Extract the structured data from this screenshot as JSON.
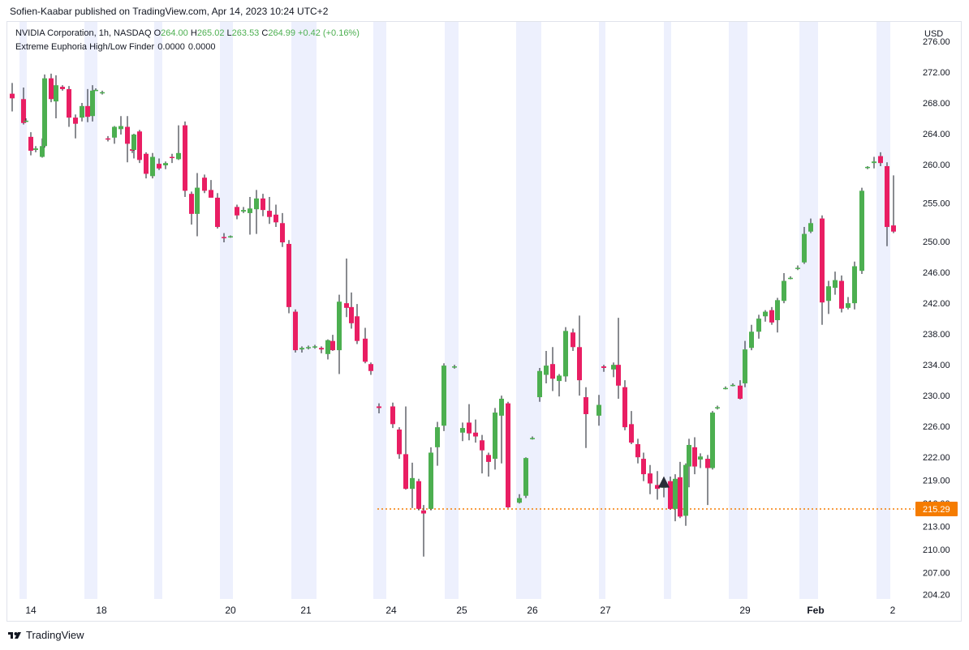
{
  "header": {
    "published_by": "Sofien-Kaabar published on TradingView.com, Apr 14, 2023 10:24 UTC+2"
  },
  "legend": {
    "symbol": "NVIDIA Corporation, 1h, NASDAQ",
    "open_label": "O",
    "open": "264.00",
    "high_label": "H",
    "high": "265.02",
    "low_label": "L",
    "low": "263.53",
    "close_label": "C",
    "close": "264.99",
    "change": "+0.42 (+0.16%)",
    "indicator_name": "Extreme Euphoria High/Low Finder",
    "indicator_value_1": "0.0000",
    "indicator_value_2": "0.0000"
  },
  "footer": {
    "brand": "TradingView",
    "logo_icon": "tradingview-logo-icon"
  },
  "colors": {
    "up": "#4caf50",
    "down": "#e91e63",
    "session_band": "#edf0fd",
    "price_line": "#f57c00",
    "signal": "#2a2e39",
    "axis_text": "#131722"
  },
  "chart_data": {
    "type": "candlestick",
    "currency": "USD",
    "ylim": [
      203.5,
      278.0
    ],
    "y_ticks": [
      "276.00",
      "272.00",
      "268.00",
      "264.00",
      "260.00",
      "255.00",
      "250.00",
      "246.00",
      "242.00",
      "238.00",
      "234.00",
      "230.00",
      "226.00",
      "222.00",
      "219.00",
      "216.00",
      "213.00",
      "210.00",
      "207.00",
      "204.20"
    ],
    "x_ticks": [
      "14",
      "18",
      "20",
      "21",
      "24",
      "25",
      "26",
      "27",
      "29",
      "Feb",
      "2"
    ],
    "last_price": "215.29",
    "last_price_value": 215.29,
    "signals": [
      {
        "type": "bullish-triangle",
        "candle_index": 100,
        "value": 218.8
      }
    ],
    "candles": [
      {
        "o": 269.2,
        "h": 270.6,
        "l": 266.9,
        "c": 268.6
      },
      {
        "o": 268.5,
        "h": 270.0,
        "l": 265.2,
        "c": 265.4
      },
      {
        "o": 265.7,
        "h": 266.0,
        "l": 265.5,
        "c": 265.7
      },
      {
        "o": 263.6,
        "h": 264.2,
        "l": 261.2,
        "c": 261.8
      },
      {
        "o": 261.9,
        "h": 262.4,
        "l": 261.6,
        "c": 262.1
      },
      {
        "o": 261.0,
        "h": 263.4,
        "l": 260.9,
        "c": 262.4
      },
      {
        "o": 262.4,
        "h": 271.7,
        "l": 262.2,
        "c": 271.2
      },
      {
        "o": 271.2,
        "h": 271.8,
        "l": 268.1,
        "c": 268.5
      },
      {
        "o": 268.2,
        "h": 271.6,
        "l": 266.0,
        "c": 270.3
      },
      {
        "o": 270.1,
        "h": 270.3,
        "l": 269.6,
        "c": 269.8
      },
      {
        "o": 269.8,
        "h": 270.2,
        "l": 264.9,
        "c": 266.1
      },
      {
        "o": 266.1,
        "h": 266.5,
        "l": 263.4,
        "c": 265.3
      },
      {
        "o": 266.1,
        "h": 268.0,
        "l": 265.6,
        "c": 267.6
      },
      {
        "o": 267.6,
        "h": 269.8,
        "l": 265.5,
        "c": 266.2
      },
      {
        "o": 266.3,
        "h": 270.3,
        "l": 265.6,
        "c": 269.6
      },
      {
        "o": 269.7,
        "h": 269.9,
        "l": 269.6,
        "c": 269.7
      },
      {
        "o": 269.3,
        "h": 269.6,
        "l": 269.1,
        "c": 269.4
      },
      {
        "o": 263.4,
        "h": 263.7,
        "l": 263.0,
        "c": 263.3
      },
      {
        "o": 263.5,
        "h": 265.0,
        "l": 262.7,
        "c": 264.9
      },
      {
        "o": 264.6,
        "h": 266.3,
        "l": 263.9,
        "c": 265.0
      },
      {
        "o": 264.9,
        "h": 266.3,
        "l": 260.3,
        "c": 262.7
      },
      {
        "o": 262.0,
        "h": 262.4,
        "l": 261.5,
        "c": 261.8
      },
      {
        "o": 261.9,
        "h": 264.0,
        "l": 260.8,
        "c": 263.9
      },
      {
        "o": 264.3,
        "h": 264.5,
        "l": 260.2,
        "c": 260.6
      },
      {
        "o": 261.4,
        "h": 261.6,
        "l": 258.2,
        "c": 258.8
      },
      {
        "o": 258.5,
        "h": 261.5,
        "l": 258.2,
        "c": 261.0
      },
      {
        "o": 260.1,
        "h": 260.8,
        "l": 259.3,
        "c": 259.5
      },
      {
        "o": 259.9,
        "h": 260.4,
        "l": 259.4,
        "c": 260.2
      },
      {
        "o": 261.0,
        "h": 261.4,
        "l": 260.2,
        "c": 260.9
      },
      {
        "o": 260.7,
        "h": 265.1,
        "l": 260.6,
        "c": 261.5
      },
      {
        "o": 265.1,
        "h": 265.6,
        "l": 255.8,
        "c": 256.6
      },
      {
        "o": 256.2,
        "h": 256.5,
        "l": 252.2,
        "c": 253.6
      },
      {
        "o": 253.6,
        "h": 258.9,
        "l": 250.7,
        "c": 257.0
      },
      {
        "o": 258.3,
        "h": 258.7,
        "l": 256.3,
        "c": 256.6
      },
      {
        "o": 256.7,
        "h": 258.0,
        "l": 255.7,
        "c": 255.7
      },
      {
        "o": 255.7,
        "h": 256.3,
        "l": 251.7,
        "c": 251.9
      },
      {
        "o": 250.6,
        "h": 251.1,
        "l": 249.9,
        "c": 250.5
      },
      {
        "o": 250.6,
        "h": 250.8,
        "l": 250.5,
        "c": 250.7
      },
      {
        "o": 254.5,
        "h": 254.8,
        "l": 252.9,
        "c": 253.4
      },
      {
        "o": 253.9,
        "h": 254.5,
        "l": 253.7,
        "c": 254.1
      },
      {
        "o": 253.7,
        "h": 255.8,
        "l": 250.9,
        "c": 254.3
      },
      {
        "o": 254.2,
        "h": 256.7,
        "l": 251.0,
        "c": 255.6
      },
      {
        "o": 255.6,
        "h": 256.2,
        "l": 253.3,
        "c": 254.1
      },
      {
        "o": 254.0,
        "h": 255.8,
        "l": 252.3,
        "c": 253.2
      },
      {
        "o": 253.5,
        "h": 254.8,
        "l": 251.9,
        "c": 252.5
      },
      {
        "o": 252.4,
        "h": 253.7,
        "l": 249.3,
        "c": 249.9
      },
      {
        "o": 249.7,
        "h": 250.2,
        "l": 240.7,
        "c": 241.5
      },
      {
        "o": 240.9,
        "h": 241.2,
        "l": 235.6,
        "c": 235.9
      },
      {
        "o": 236.0,
        "h": 236.4,
        "l": 235.6,
        "c": 236.2
      },
      {
        "o": 236.2,
        "h": 236.5,
        "l": 236.0,
        "c": 236.3
      },
      {
        "o": 236.3,
        "h": 236.6,
        "l": 236.1,
        "c": 236.4
      },
      {
        "o": 236.2,
        "h": 236.4,
        "l": 235.5,
        "c": 236.0
      },
      {
        "o": 235.4,
        "h": 237.3,
        "l": 234.7,
        "c": 237.2
      },
      {
        "o": 237.1,
        "h": 237.9,
        "l": 235.8,
        "c": 235.9
      },
      {
        "o": 235.9,
        "h": 243.1,
        "l": 232.8,
        "c": 242.2
      },
      {
        "o": 242.0,
        "h": 247.8,
        "l": 240.2,
        "c": 241.4
      },
      {
        "o": 241.5,
        "h": 243.4,
        "l": 238.7,
        "c": 239.4
      },
      {
        "o": 240.3,
        "h": 241.9,
        "l": 236.7,
        "c": 237.1
      },
      {
        "o": 237.4,
        "h": 238.8,
        "l": 234.2,
        "c": 234.4
      },
      {
        "o": 234.1,
        "h": 234.3,
        "l": 232.7,
        "c": 233.2
      },
      {
        "o": 228.6,
        "h": 229.0,
        "l": 227.7,
        "c": 228.4
      },
      {
        "o": 228.6,
        "h": 229.1,
        "l": 225.8,
        "c": 226.3
      },
      {
        "o": 225.6,
        "h": 225.9,
        "l": 221.8,
        "c": 222.4
      },
      {
        "o": 222.4,
        "h": 228.6,
        "l": 217.8,
        "c": 217.9
      },
      {
        "o": 217.9,
        "h": 221.3,
        "l": 215.4,
        "c": 219.3
      },
      {
        "o": 218.9,
        "h": 219.2,
        "l": 215.1,
        "c": 215.3
      },
      {
        "o": 215.1,
        "h": 215.8,
        "l": 209.1,
        "c": 214.7
      },
      {
        "o": 215.3,
        "h": 223.3,
        "l": 215.1,
        "c": 222.6
      },
      {
        "o": 223.3,
        "h": 226.6,
        "l": 220.9,
        "c": 225.9
      },
      {
        "o": 226.1,
        "h": 234.2,
        "l": 225.4,
        "c": 233.9
      },
      {
        "o": 233.7,
        "h": 234.0,
        "l": 233.5,
        "c": 233.8
      },
      {
        "o": 225.2,
        "h": 226.5,
        "l": 224.1,
        "c": 225.8
      },
      {
        "o": 226.5,
        "h": 228.9,
        "l": 224.2,
        "c": 225.1
      },
      {
        "o": 225.2,
        "h": 226.9,
        "l": 223.9,
        "c": 224.7
      },
      {
        "o": 224.2,
        "h": 224.9,
        "l": 219.9,
        "c": 222.9
      },
      {
        "o": 222.3,
        "h": 222.6,
        "l": 219.5,
        "c": 221.4
      },
      {
        "o": 221.8,
        "h": 228.4,
        "l": 220.4,
        "c": 227.8
      },
      {
        "o": 227.4,
        "h": 230.0,
        "l": 221.2,
        "c": 229.6
      },
      {
        "o": 229.0,
        "h": 229.2,
        "l": 215.4,
        "c": 215.5
      },
      {
        "o": 216.1,
        "h": 217.2,
        "l": 216.0,
        "c": 216.7
      },
      {
        "o": 217.0,
        "h": 222.0,
        "l": 216.7,
        "c": 221.9
      },
      {
        "o": 224.5,
        "h": 224.7,
        "l": 224.3,
        "c": 224.5
      },
      {
        "o": 229.8,
        "h": 233.6,
        "l": 229.2,
        "c": 233.2
      },
      {
        "o": 232.7,
        "h": 235.8,
        "l": 231.6,
        "c": 233.9
      },
      {
        "o": 234.1,
        "h": 236.3,
        "l": 230.6,
        "c": 232.2
      },
      {
        "o": 231.9,
        "h": 232.8,
        "l": 229.9,
        "c": 232.6
      },
      {
        "o": 232.5,
        "h": 238.9,
        "l": 231.8,
        "c": 238.4
      },
      {
        "o": 238.2,
        "h": 238.7,
        "l": 235.8,
        "c": 236.3
      },
      {
        "o": 236.3,
        "h": 240.4,
        "l": 230.0,
        "c": 232.0
      },
      {
        "o": 229.8,
        "h": 231.1,
        "l": 223.2,
        "c": 227.6
      },
      {
        "o": 227.4,
        "h": 230.1,
        "l": 226.1,
        "c": 228.8
      },
      {
        "o": 233.8,
        "h": 234.0,
        "l": 233.1,
        "c": 233.6
      },
      {
        "o": 233.4,
        "h": 234.3,
        "l": 232.4,
        "c": 234.0
      },
      {
        "o": 234.0,
        "h": 240.1,
        "l": 229.6,
        "c": 231.3
      },
      {
        "o": 231.1,
        "h": 232.0,
        "l": 225.5,
        "c": 225.9
      },
      {
        "o": 226.3,
        "h": 228.0,
        "l": 223.7,
        "c": 223.9
      },
      {
        "o": 223.7,
        "h": 224.4,
        "l": 221.2,
        "c": 222.0
      },
      {
        "o": 221.8,
        "h": 222.6,
        "l": 218.9,
        "c": 219.8
      },
      {
        "o": 219.9,
        "h": 221.0,
        "l": 217.2,
        "c": 218.6
      },
      {
        "o": 218.4,
        "h": 220.2,
        "l": 216.5,
        "c": 217.9
      },
      {
        "o": 218.1,
        "h": 219.0,
        "l": 216.8,
        "c": 218.2
      },
      {
        "o": 218.9,
        "h": 219.5,
        "l": 215.2,
        "c": 215.3
      },
      {
        "o": 215.3,
        "h": 219.8,
        "l": 213.7,
        "c": 219.2
      },
      {
        "o": 219.4,
        "h": 221.4,
        "l": 214.1,
        "c": 214.3
      },
      {
        "o": 214.4,
        "h": 221.2,
        "l": 213.1,
        "c": 221.0
      },
      {
        "o": 220.8,
        "h": 224.4,
        "l": 218.1,
        "c": 223.6
      },
      {
        "o": 223.3,
        "h": 224.6,
        "l": 219.8,
        "c": 220.8
      },
      {
        "o": 221.7,
        "h": 222.5,
        "l": 220.6,
        "c": 222.1
      },
      {
        "o": 221.8,
        "h": 222.3,
        "l": 215.8,
        "c": 220.6
      },
      {
        "o": 220.6,
        "h": 228.0,
        "l": 220.4,
        "c": 227.8
      },
      {
        "o": 228.4,
        "h": 228.7,
        "l": 228.2,
        "c": 228.5
      },
      {
        "o": 231.0,
        "h": 231.2,
        "l": 230.8,
        "c": 231.0
      },
      {
        "o": 231.4,
        "h": 231.6,
        "l": 231.2,
        "c": 231.4
      },
      {
        "o": 231.3,
        "h": 232.0,
        "l": 229.5,
        "c": 229.6
      },
      {
        "o": 231.6,
        "h": 237.1,
        "l": 231.1,
        "c": 236.0
      },
      {
        "o": 236.2,
        "h": 239.2,
        "l": 235.9,
        "c": 238.3
      },
      {
        "o": 238.3,
        "h": 240.5,
        "l": 237.4,
        "c": 240.0
      },
      {
        "o": 240.3,
        "h": 241.1,
        "l": 239.6,
        "c": 240.9
      },
      {
        "o": 241.1,
        "h": 241.5,
        "l": 239.2,
        "c": 239.5
      },
      {
        "o": 239.8,
        "h": 242.7,
        "l": 238.2,
        "c": 242.4
      },
      {
        "o": 242.3,
        "h": 245.9,
        "l": 242.0,
        "c": 244.9
      },
      {
        "o": 245.3,
        "h": 245.5,
        "l": 245.1,
        "c": 245.3
      },
      {
        "o": 246.5,
        "h": 246.9,
        "l": 246.3,
        "c": 246.6
      },
      {
        "o": 247.3,
        "h": 251.9,
        "l": 247.1,
        "c": 251.0
      },
      {
        "o": 251.3,
        "h": 253.0,
        "l": 251.1,
        "c": 252.4
      },
      {
        "o": 253.0,
        "h": 253.4,
        "l": 239.2,
        "c": 242.1
      },
      {
        "o": 242.3,
        "h": 244.9,
        "l": 240.6,
        "c": 244.2
      },
      {
        "o": 244.0,
        "h": 246.1,
        "l": 243.1,
        "c": 245.0
      },
      {
        "o": 244.9,
        "h": 245.6,
        "l": 240.8,
        "c": 241.3
      },
      {
        "o": 241.4,
        "h": 242.8,
        "l": 241.2,
        "c": 242.0
      },
      {
        "o": 242.0,
        "h": 247.4,
        "l": 241.2,
        "c": 246.8
      },
      {
        "o": 246.2,
        "h": 257.0,
        "l": 245.8,
        "c": 256.6
      },
      {
        "o": 259.6,
        "h": 259.8,
        "l": 259.4,
        "c": 259.7
      },
      {
        "o": 260.2,
        "h": 261.0,
        "l": 259.5,
        "c": 260.4
      },
      {
        "o": 261.1,
        "h": 261.6,
        "l": 259.8,
        "c": 260.2
      },
      {
        "o": 259.8,
        "h": 260.3,
        "l": 249.4,
        "c": 251.9
      },
      {
        "o": 252.1,
        "h": 258.6,
        "l": 251.1,
        "c": 251.3
      }
    ],
    "candle_x": [
      15,
      29,
      32,
      38,
      44,
      52,
      55,
      63,
      69,
      77,
      85,
      93,
      101,
      108,
      114,
      118,
      126,
      133,
      141,
      149,
      157,
      163,
      165,
      172,
      180,
      188,
      196,
      204,
      212,
      220,
      228,
      236,
      243,
      252,
      260,
      268,
      276,
      284,
      292,
      300,
      308,
      316,
      324,
      332,
      340,
      348,
      356,
      364,
      372,
      380,
      388,
      396,
      404,
      410,
      418,
      427,
      433,
      440,
      450,
      457,
      467,
      484,
      492,
      500,
      508,
      516,
      522,
      531,
      539,
      547,
      560,
      570,
      578,
      586,
      594,
      602,
      610,
      618,
      626,
      640,
      648,
      656,
      665,
      673,
      681,
      689,
      697,
      706,
      714,
      722,
      738,
      744,
      756,
      762,
      770,
      778,
      786,
      793,
      801,
      810,
      818,
      826,
      832,
      838,
      845,
      849,
      856,
      863,
      872,
      878,
      884,
      894,
      903,
      912,
      918,
      926,
      935,
      943,
      951,
      958,
      966,
      974,
      983,
      991,
      999,
      1013,
      1021,
      1029,
      1037,
      1045,
      1053,
      1062,
      1069,
      1077,
      1085,
      1093,
      1101,
      1109,
      1117,
      1125
    ],
    "session_bands": [
      [
        24,
        33
      ],
      [
        104,
        120
      ],
      [
        190,
        200
      ],
      [
        271,
        287
      ],
      [
        359,
        390
      ],
      [
        460,
        476
      ],
      [
        548,
        565
      ],
      [
        636,
        667
      ],
      [
        738,
        746
      ],
      [
        818,
        827
      ],
      [
        898,
        921
      ],
      [
        985,
        1008
      ],
      [
        1080,
        1097
      ]
    ]
  }
}
